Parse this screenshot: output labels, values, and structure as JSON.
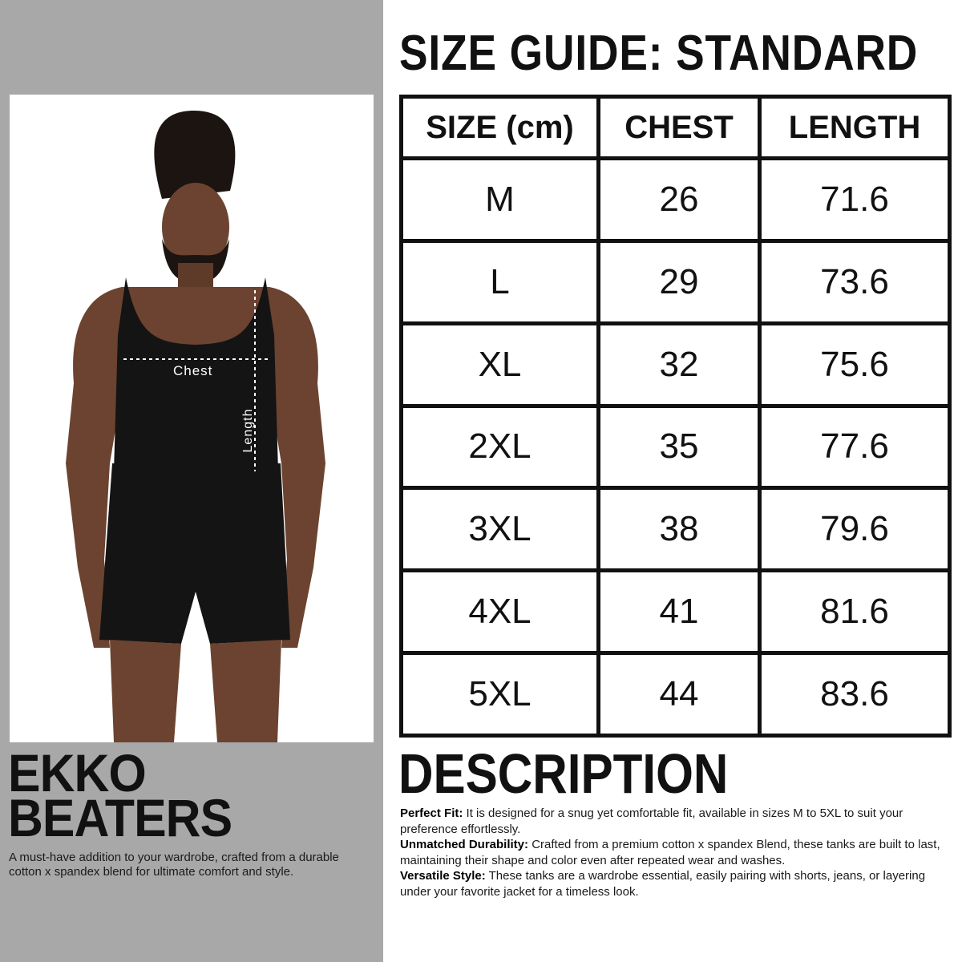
{
  "left_panel": {
    "photo": {
      "chest_label": "Chest",
      "length_label": "Length"
    },
    "brand_line1": "EKKO",
    "brand_line2": "BEATERS",
    "tagline": "A must-have addition to your wardrobe, crafted from a durable cotton x spandex blend for ultimate comfort and style."
  },
  "size_guide": {
    "title": "SIZE GUIDE: STANDARD",
    "headers": [
      "SIZE (cm)",
      "CHEST",
      "LENGTH"
    ],
    "rows": [
      [
        "M",
        "26",
        "71.6"
      ],
      [
        "L",
        "29",
        "73.6"
      ],
      [
        "XL",
        "32",
        "75.6"
      ],
      [
        "2XL",
        "35",
        "77.6"
      ],
      [
        "3XL",
        "38",
        "79.6"
      ],
      [
        "4XL",
        "41",
        "81.6"
      ],
      [
        "5XL",
        "44",
        "83.6"
      ]
    ]
  },
  "description": {
    "title": "DESCRIPTION",
    "items": [
      {
        "label": "Perfect Fit:",
        "text": " It is designed for a snug yet comfortable fit, available in sizes M to 5XL to suit your preference effortlessly."
      },
      {
        "label": "Unmatched Durability:",
        "text": " Crafted from a premium cotton x spandex Blend, these tanks are built to last, maintaining their shape and color even after repeated wear and washes."
      },
      {
        "label": "Versatile Style:",
        "text": " These tanks are a wardrobe essential, easily pairing with shorts, jeans, or layering under your favorite jacket for a timeless look."
      }
    ]
  },
  "colors": {
    "panel_gray": "#a8a8a8",
    "text": "#111111",
    "skin": "#6b4330",
    "garment": "#141414"
  }
}
